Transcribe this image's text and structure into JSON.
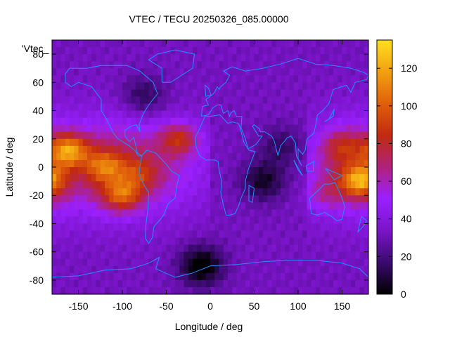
{
  "chart_data": {
    "type": "heatmap",
    "title": "VTEC / TECU 20250326_085.00000",
    "key_label": "'Vtec_",
    "xlabel": "Longitude / deg",
    "ylabel": "Latitude / deg",
    "xlim": [
      -180,
      180
    ],
    "ylim": [
      -90,
      90
    ],
    "x_ticks": [
      -150,
      -100,
      -50,
      0,
      50,
      100,
      150
    ],
    "y_ticks": [
      -80,
      -60,
      -40,
      -20,
      0,
      20,
      40,
      60,
      80
    ],
    "colorbar": {
      "range": [
        0,
        135
      ],
      "ticks": [
        0,
        20,
        40,
        60,
        80,
        100,
        120
      ],
      "palette": [
        "#000000",
        "#3a0a6e",
        "#7a14c8",
        "#9a20ff",
        "#b0227a",
        "#c22a10",
        "#e0600a",
        "#f2a010",
        "#ffe020"
      ]
    },
    "grid": false,
    "coastline_color": "#1e90ff",
    "values_description_grid_deg": 5,
    "features": {
      "equatorial_anomaly_crests": [
        {
          "lon": -160,
          "lat": 12,
          "vtec": 125
        },
        {
          "lon": -120,
          "lat": 0,
          "vtec": 105
        },
        {
          "lon": -100,
          "lat": -20,
          "vtec": 115
        },
        {
          "lon": -80,
          "lat": -5,
          "vtec": 90
        },
        {
          "lon": -35,
          "lat": 20,
          "vtec": 110
        },
        {
          "lon": -40,
          "lat": -5,
          "vtec": 70
        },
        {
          "lon": 170,
          "lat": -10,
          "vtec": 125
        },
        {
          "lon": 150,
          "lat": 15,
          "vtec": 95
        },
        {
          "lon": 130,
          "lat": -20,
          "vtec": 85
        }
      ],
      "lows": [
        {
          "lon": -10,
          "lat": -70,
          "vtec": 2
        },
        {
          "lon": -75,
          "lat": 50,
          "vtec": 15
        },
        {
          "lon": 60,
          "lat": -10,
          "vtec": 10
        },
        {
          "lon": 80,
          "lat": 15,
          "vtec": 18
        }
      ]
    }
  }
}
